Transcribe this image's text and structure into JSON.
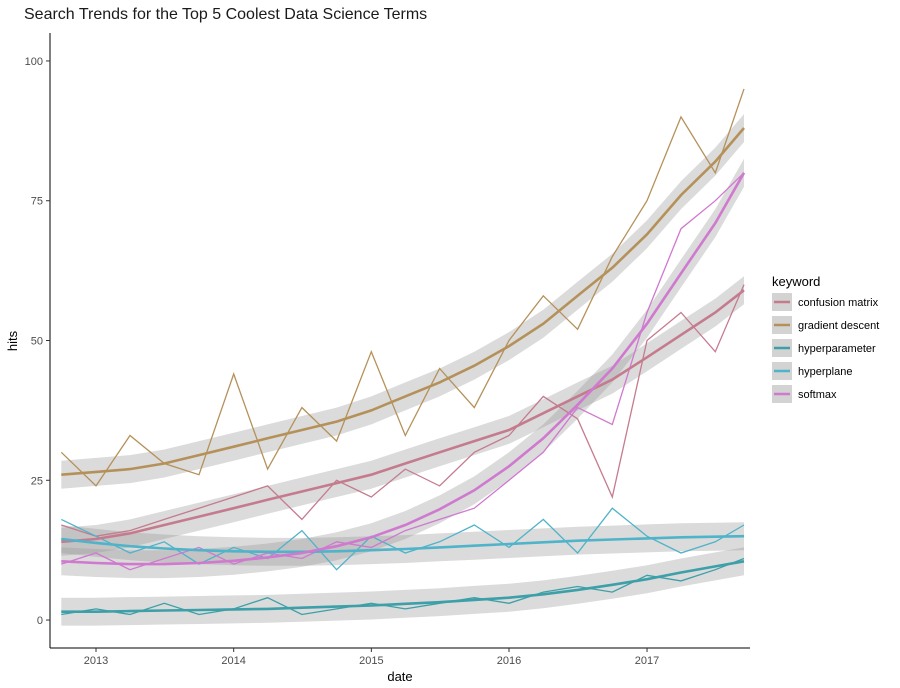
{
  "chart_data": {
    "type": "line",
    "title": "Search Trends for the Top 5 Coolest Data Science Terms",
    "xlabel": "date",
    "ylabel": "hits",
    "xlim": [
      "2012-09-01",
      "2017-10-01"
    ],
    "ylim": [
      -5,
      105
    ],
    "x_ticks": [
      {
        "label": "2013",
        "date": "2013-01-01"
      },
      {
        "label": "2014",
        "date": "2014-01-01"
      },
      {
        "label": "2015",
        "date": "2015-01-01"
      },
      {
        "label": "2016",
        "date": "2016-01-01"
      },
      {
        "label": "2017",
        "date": "2017-01-01"
      }
    ],
    "y_ticks": [
      0,
      25,
      50,
      75,
      100
    ],
    "grid": false,
    "legend": {
      "title": "keyword",
      "position": "right"
    },
    "smoothing": "loess trend with grey confidence band",
    "x_dates": [
      "2012-10-01",
      "2013-01-01",
      "2013-04-01",
      "2013-07-01",
      "2013-10-01",
      "2014-01-01",
      "2014-04-01",
      "2014-07-01",
      "2014-10-01",
      "2015-01-01",
      "2015-04-01",
      "2015-07-01",
      "2015-10-01",
      "2016-01-01",
      "2016-04-01",
      "2016-07-01",
      "2016-10-01",
      "2017-01-01",
      "2017-04-01",
      "2017-07-01",
      "2017-09-15"
    ],
    "series": [
      {
        "name": "confusion matrix",
        "color": "#c57b8e",
        "values": [
          17,
          15,
          16,
          18,
          20,
          22,
          24,
          18,
          25,
          22,
          27,
          24,
          30,
          33,
          40,
          36,
          22,
          50,
          55,
          48,
          60
        ],
        "trend": [
          14,
          14.5,
          15.5,
          17,
          18.5,
          20,
          21.5,
          23,
          24.5,
          26,
          28,
          30,
          32,
          34,
          37,
          40,
          43,
          47,
          51,
          55,
          59
        ]
      },
      {
        "name": "gradient descent",
        "color": "#b5915a",
        "values": [
          30,
          24,
          33,
          28,
          26,
          44,
          27,
          38,
          32,
          48,
          33,
          45,
          38,
          50,
          58,
          52,
          65,
          75,
          90,
          80,
          95
        ],
        "trend": [
          26,
          26.5,
          27,
          28,
          29.5,
          31,
          32.5,
          34,
          35.5,
          37.5,
          40,
          42.5,
          45.5,
          49,
          53,
          58,
          63,
          69,
          76,
          82,
          88
        ]
      },
      {
        "name": "hyperparameter",
        "color": "#3d9fa8",
        "values": [
          1,
          2,
          1,
          3,
          1,
          2,
          4,
          1,
          2,
          3,
          2,
          3,
          4,
          3,
          5,
          6,
          5,
          8,
          7,
          9,
          11
        ],
        "trend": [
          1.5,
          1.5,
          1.6,
          1.7,
          1.8,
          1.9,
          2,
          2.2,
          2.4,
          2.6,
          2.9,
          3.2,
          3.6,
          4,
          4.6,
          5.4,
          6.3,
          7.3,
          8.5,
          9.6,
          10.5
        ]
      },
      {
        "name": "hyperplane",
        "color": "#4fb3c9",
        "values": [
          18,
          15,
          12,
          14,
          10,
          13,
          11,
          16,
          9,
          15,
          12,
          14,
          17,
          13,
          18,
          12,
          20,
          15,
          12,
          14,
          17
        ],
        "trend": [
          14.5,
          13.8,
          13.2,
          12.8,
          12.5,
          12.3,
          12.2,
          12.2,
          12.3,
          12.5,
          12.7,
          13,
          13.3,
          13.6,
          13.9,
          14.2,
          14.4,
          14.6,
          14.8,
          14.9,
          15
        ]
      },
      {
        "name": "softmax",
        "color": "#cf79cf",
        "values": [
          10,
          12,
          9,
          11,
          13,
          10,
          12,
          11,
          14,
          13,
          16,
          18,
          20,
          25,
          30,
          38,
          35,
          55,
          70,
          75,
          80
        ],
        "trend": [
          10.5,
          10.2,
          10,
          10,
          10.2,
          10.6,
          11.2,
          12,
          13.2,
          14.8,
          17,
          19.8,
          23.2,
          27.5,
          32.5,
          38.5,
          45,
          53,
          62,
          71,
          80
        ]
      }
    ]
  }
}
